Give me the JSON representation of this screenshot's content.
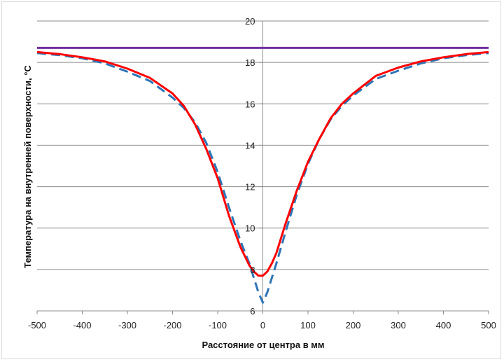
{
  "chart_data": {
    "type": "line",
    "title": "",
    "xlabel": "Расстояние  от центра в мм",
    "ylabel": "Температура  на  внутренней поверхности,  °С",
    "xlim": [
      -500,
      500
    ],
    "ylim": [
      6,
      20
    ],
    "x_ticks": [
      -500,
      -400,
      -300,
      -200,
      -100,
      0,
      100,
      200,
      300,
      400,
      500
    ],
    "y_ticks": [
      6,
      8,
      10,
      12,
      14,
      16,
      18,
      20
    ],
    "x_tick_labels": [
      "-500",
      "-400",
      "-300",
      "-200",
      "-100",
      "0",
      "100",
      "200",
      "300",
      "400",
      "500"
    ],
    "y_tick_labels": [
      "6",
      "8",
      "10",
      "12",
      "14",
      "16",
      "18",
      "20"
    ],
    "grid": "horizontal",
    "legend": "none",
    "series": [
      {
        "color": "#7030a0",
        "style": "solid",
        "x": [
          -500,
          500
        ],
        "y": [
          18.7,
          18.7
        ]
      },
      {
        "color": "#2e75b6",
        "style": "dashed",
        "x": [
          -500,
          -450,
          -400,
          -350,
          -300,
          -250,
          -200,
          -175,
          -150,
          -125,
          -100,
          -75,
          -50,
          -30,
          -20,
          -10,
          0,
          10,
          20,
          30,
          50,
          75,
          100,
          125,
          150,
          175,
          200,
          250,
          300,
          350,
          400,
          450,
          500
        ],
        "y": [
          18.45,
          18.35,
          18.2,
          17.95,
          17.55,
          17.1,
          16.3,
          15.8,
          15.1,
          14.1,
          12.7,
          11.0,
          9.4,
          8.3,
          7.6,
          6.9,
          6.4,
          6.9,
          7.6,
          8.3,
          9.8,
          11.6,
          13.1,
          14.3,
          15.25,
          15.9,
          16.4,
          17.2,
          17.6,
          17.95,
          18.2,
          18.35,
          18.45
        ]
      },
      {
        "color": "#ff0000",
        "style": "solid",
        "x": [
          -500,
          -450,
          -400,
          -350,
          -300,
          -250,
          -200,
          -175,
          -150,
          -125,
          -100,
          -75,
          -50,
          -30,
          -20,
          -10,
          0,
          10,
          20,
          30,
          50,
          75,
          100,
          125,
          150,
          175,
          200,
          250,
          300,
          350,
          400,
          450,
          500
        ],
        "y": [
          18.5,
          18.4,
          18.25,
          18.05,
          17.7,
          17.25,
          16.5,
          15.9,
          15.0,
          13.8,
          12.4,
          10.6,
          9.1,
          8.2,
          7.9,
          7.7,
          7.7,
          7.9,
          8.3,
          8.8,
          10.2,
          11.8,
          13.2,
          14.3,
          15.3,
          16.0,
          16.5,
          17.35,
          17.75,
          18.05,
          18.25,
          18.4,
          18.5
        ]
      }
    ]
  }
}
